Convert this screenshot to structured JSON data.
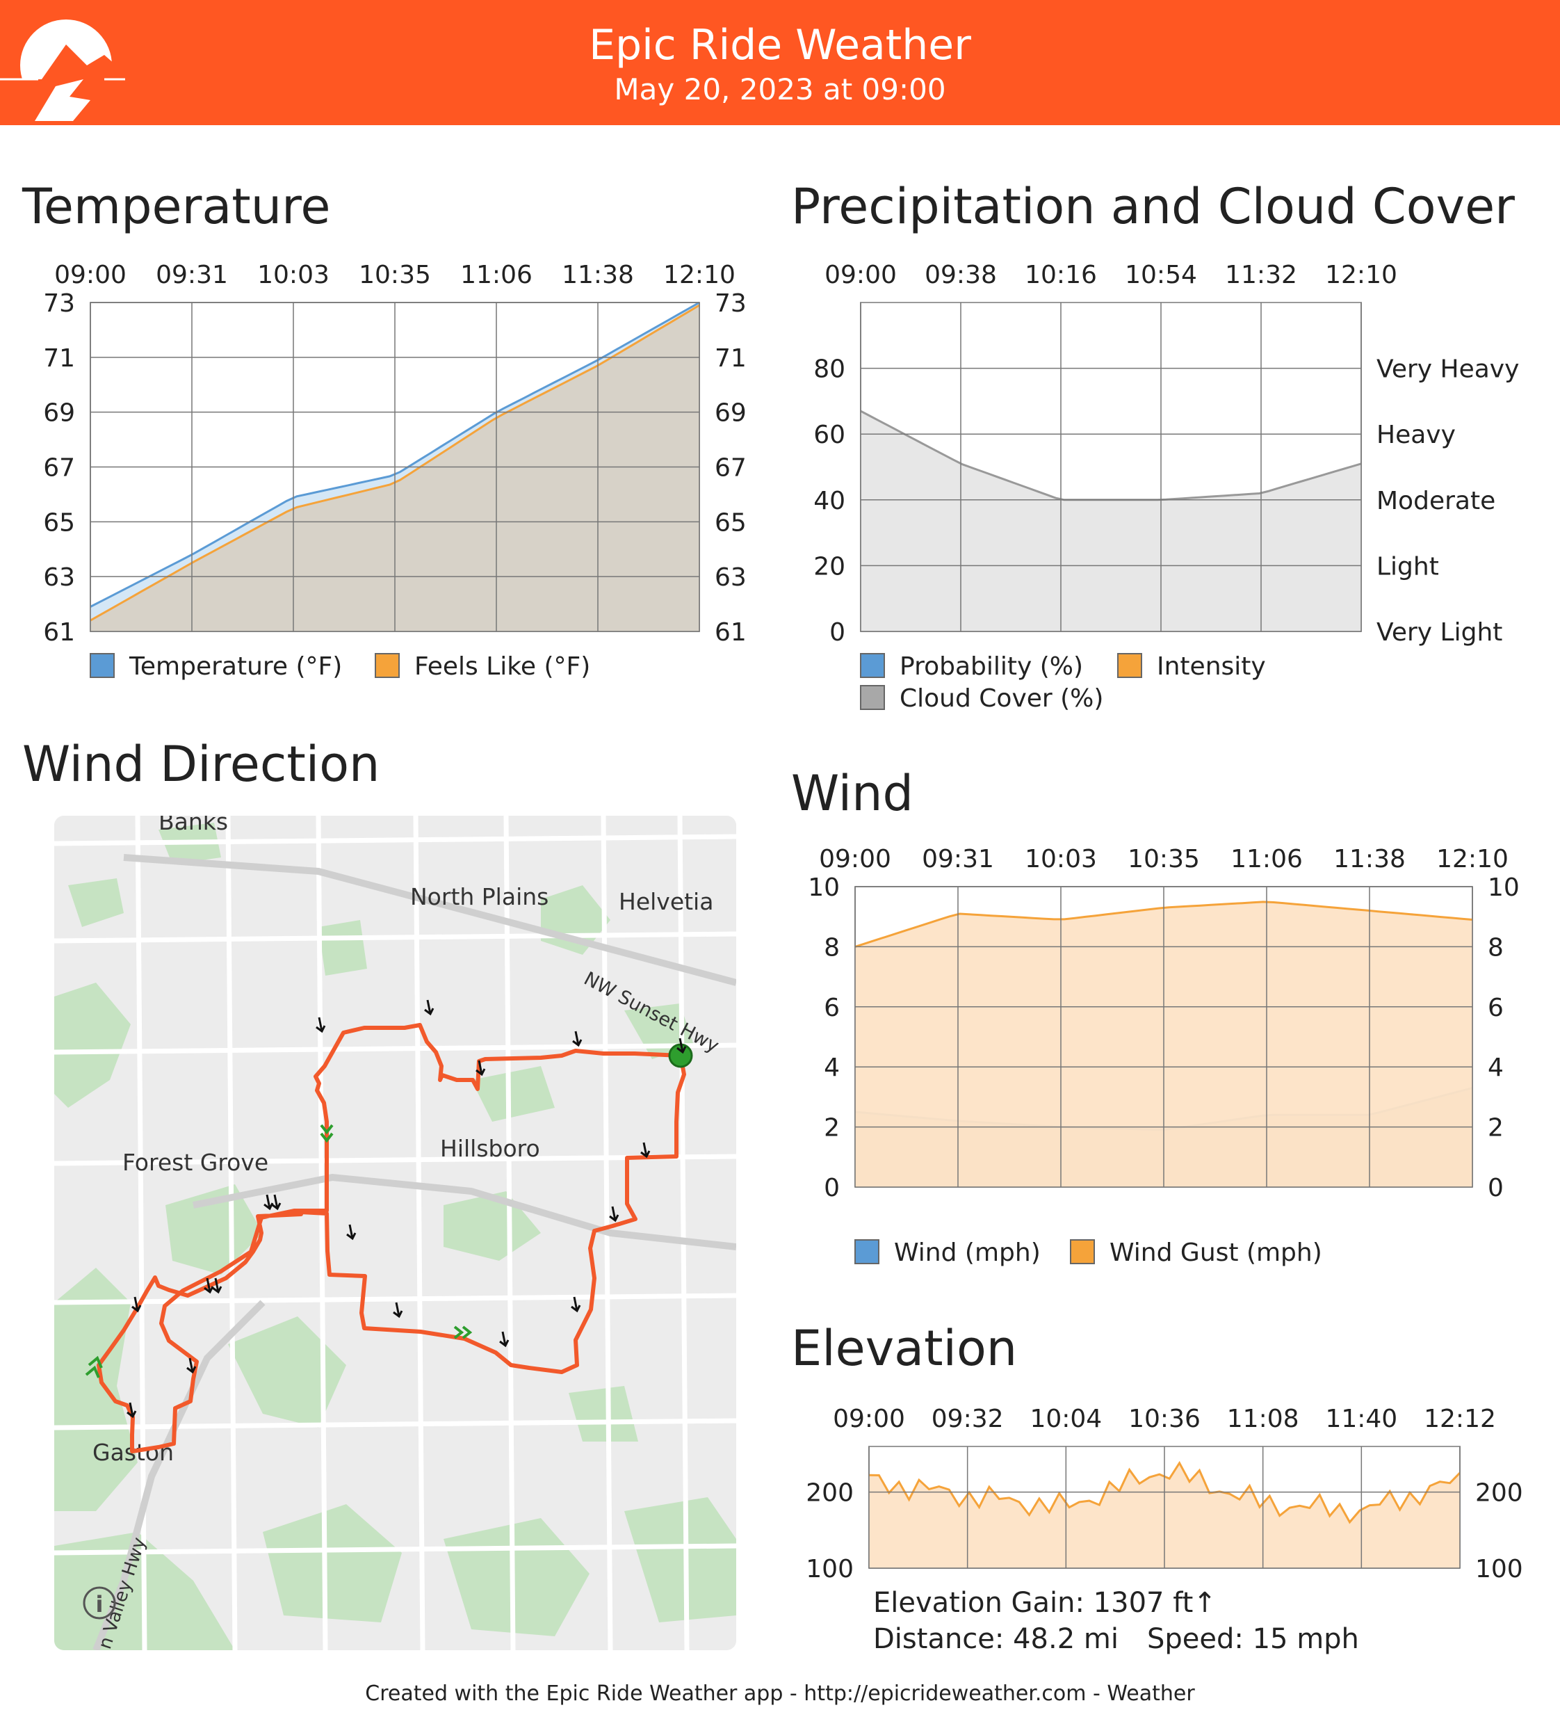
{
  "header": {
    "title": "Epic Ride Weather",
    "subtitle": "May 20, 2023 at 09:00",
    "accent": "#FF5722"
  },
  "temperature": {
    "title": "Temperature",
    "chart_data": {
      "type": "area",
      "x": [
        "09:00",
        "09:31",
        "10:03",
        "10:35",
        "11:06",
        "11:38",
        "12:10"
      ],
      "yticks": [
        61,
        63,
        65,
        67,
        69,
        71,
        73
      ],
      "ylim": [
        61,
        73
      ],
      "series": [
        {
          "name": "Temperature (°F)",
          "color": "#5b9bd5",
          "values": [
            61.9,
            63.8,
            65.9,
            66.7,
            69.0,
            70.9,
            73.0
          ]
        },
        {
          "name": "Feels Like (°F)",
          "color": "#f5a33a",
          "values": [
            61.4,
            63.5,
            65.5,
            66.4,
            68.8,
            70.7,
            72.9
          ]
        }
      ],
      "legend": "bottom"
    }
  },
  "precip": {
    "title": "Precipitation and Cloud Cover",
    "chart_data": {
      "type": "area",
      "x": [
        "09:00",
        "09:38",
        "10:16",
        "10:54",
        "11:32",
        "12:10"
      ],
      "yticks": [
        0,
        20,
        40,
        60,
        80
      ],
      "ylim": [
        0,
        100
      ],
      "right_labels": [
        "Very Light",
        "Light",
        "Moderate",
        "Heavy",
        "Very Heavy"
      ],
      "series": [
        {
          "name": "Probability (%)",
          "color": "#5b9bd5",
          "values": [
            0,
            0,
            0,
            0,
            0,
            0
          ]
        },
        {
          "name": "Intensity",
          "color": "#f5a33a",
          "values": [
            0,
            0,
            0,
            0,
            0,
            0
          ]
        },
        {
          "name": "Cloud Cover (%)",
          "color": "#a8a8a8",
          "values": [
            67,
            51,
            40,
            40,
            42,
            51
          ]
        }
      ],
      "legend": "bottom"
    }
  },
  "wind_direction": {
    "title": "Wind Direction",
    "map_labels": [
      "Banks",
      "North Plains",
      "Helvetia",
      "NW Sunset Hwy",
      "Forest Grove",
      "Hillsboro",
      "Gaston",
      "n Valley Hwy"
    ],
    "route_color": "#f2592b"
  },
  "wind": {
    "title": "Wind",
    "chart_data": {
      "type": "area",
      "x": [
        "09:00",
        "09:31",
        "10:03",
        "10:35",
        "11:06",
        "11:38",
        "12:10"
      ],
      "yticks": [
        0,
        2,
        4,
        6,
        8,
        10
      ],
      "ylim": [
        0,
        10
      ],
      "series": [
        {
          "name": "Wind (mph)",
          "color": "#5b9bd5",
          "values": [
            2.5,
            2.2,
            2.0,
            1.9,
            2.4,
            2.4,
            3.3
          ]
        },
        {
          "name": "Wind Gust (mph)",
          "color": "#f5a33a",
          "values": [
            8.0,
            9.1,
            8.9,
            9.3,
            9.5,
            9.2,
            8.9
          ]
        }
      ],
      "legend": "bottom"
    }
  },
  "elevation": {
    "title": "Elevation",
    "chart_data": {
      "type": "area",
      "x": [
        "09:00",
        "09:32",
        "10:04",
        "10:36",
        "11:08",
        "11:40",
        "12:12"
      ],
      "yticks": [
        100,
        200
      ],
      "ylim": [
        100,
        260
      ],
      "series": [
        {
          "name": "Elevation",
          "color": "#f5a33a",
          "values": [
            215,
            195,
            180,
            230,
            185,
            175,
            215
          ]
        }
      ]
    },
    "gain_text": "Elevation Gain: 1307 ft↑",
    "distance_text": "Distance: 48.2 mi",
    "speed_text": "Speed: 15 mph"
  },
  "footer": {
    "text": "Created with the Epic Ride Weather app - http://epicrideweather.com -  Weather",
    "apple_icon": "apple-icon"
  }
}
